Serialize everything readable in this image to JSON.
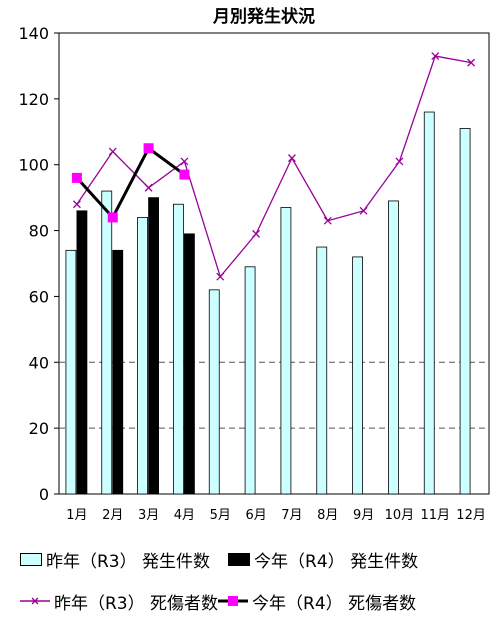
{
  "chart_data": {
    "type": "bar+line",
    "title": "月別発生状況",
    "categories": [
      "1月",
      "2月",
      "3月",
      "4月",
      "5月",
      "6月",
      "7月",
      "8月",
      "9月",
      "10月",
      "11月",
      "12月"
    ],
    "ylim": [
      0,
      140
    ],
    "yticks": [
      0,
      20,
      40,
      60,
      80,
      100,
      120,
      140
    ],
    "grid": "dashed at 40 and 20",
    "series": [
      {
        "name": "昨年（R3）発生件数",
        "kind": "bar",
        "color": "#ccffff",
        "values": [
          74,
          92,
          84,
          88,
          62,
          69,
          87,
          75,
          72,
          89,
          116,
          111
        ]
      },
      {
        "name": "今年（R4）発生件数",
        "kind": "bar",
        "color": "#000000",
        "values": [
          86,
          74,
          90,
          79,
          null,
          null,
          null,
          null,
          null,
          null,
          null,
          null
        ]
      },
      {
        "name": "昨年（R3）死傷者数",
        "kind": "line",
        "color": "#990099",
        "marker": "x",
        "values": [
          88,
          104,
          93,
          101,
          66,
          79,
          102,
          83,
          86,
          101,
          133,
          131
        ]
      },
      {
        "name": "今年（R4）死傷者数",
        "kind": "line",
        "color": "#000000",
        "marker": "square",
        "marker_color": "#ff00ff",
        "values": [
          96,
          84,
          105,
          97,
          null,
          null,
          null,
          null,
          null,
          null,
          null,
          null
        ]
      }
    ]
  },
  "legend": {
    "r3_cases": "昨年（R3）  発生件数",
    "r4_cases": "今年（R4）  発生件数",
    "r3_casualties": "昨年（R3）  死傷者数",
    "r4_casualties": "今年（R4）  死傷者数"
  }
}
